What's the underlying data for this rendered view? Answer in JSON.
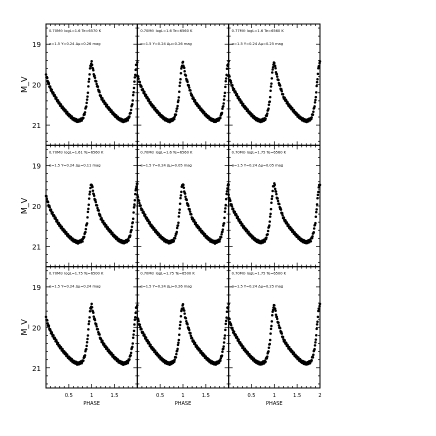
{
  "figure": {
    "ylabel": "M_V",
    "xlabel": "PHASE"
  },
  "chart_data": {
    "type": "scatter",
    "grid": false,
    "rows": 3,
    "cols": 3,
    "xlim": [
      0.0,
      2.0
    ],
    "ylim": [
      18.5,
      21.5
    ],
    "y_inverted": true,
    "xticks": [
      0.5,
      1.0,
      1.5,
      2.0
    ],
    "xtick_labels": [
      "0.5",
      "1",
      "1.5",
      "2"
    ],
    "yticks": [
      19,
      20,
      21
    ],
    "ytick_labels": [
      "19",
      "20",
      "21"
    ],
    "light_curve_template": {
      "phase": [
        0.0,
        0.05,
        0.1,
        0.2,
        0.3,
        0.4,
        0.5,
        0.6,
        0.7,
        0.8,
        0.85,
        0.9,
        0.94,
        0.97,
        1.0,
        1.05,
        1.1,
        1.2,
        1.3,
        1.4,
        1.5,
        1.6,
        1.7,
        1.8,
        1.85,
        1.9,
        1.94,
        1.97,
        2.0
      ],
      "mag": [
        19.75,
        19.95,
        20.1,
        20.3,
        20.48,
        20.62,
        20.75,
        20.85,
        20.9,
        20.85,
        20.7,
        20.4,
        19.9,
        19.55,
        19.45,
        19.75,
        19.95,
        20.3,
        20.48,
        20.62,
        20.75,
        20.85,
        20.9,
        20.85,
        20.7,
        20.4,
        19.9,
        19.55,
        19.45
      ]
    },
    "panels": [
      {
        "label_line1": "0.70M⊙ logL=1.6 Te=6570 K",
        "label_line2": "α=1.5 Y=0.24 Δμ=0.26 mag"
      },
      {
        "label_line1": "0.70M⊙ logL=1.6 Te=6560 K",
        "label_line2": "α=1.5 Y=0.24 Δμ=0.26 mag"
      },
      {
        "label_line1": "0.77M⊙ logL=1.6 Te=6560 K",
        "label_line2": "α=1.5 Y=0.24 Δμ=0.25 mag"
      },
      {
        "label_line1": "0.70M⊙ logL=1.61 Te=6560 K",
        "label_line2": "α=1.5 Y=0.24 Δμ=0.11 mag"
      },
      {
        "label_line1": "0.70M⊙ logL=1.6 Te=6560 K",
        "label_line2": "α=1.5 Y=0.24 Δμ=0.05 mag"
      },
      {
        "label_line1": "0.70M⊙ logL=1.75 Te=6560 K",
        "label_line2": "α=1.5 Y=0.24 Δμ=0.05 mag"
      },
      {
        "label_line1": "0.70M⊙ logL=1.75 Te=6500 K",
        "label_line2": "α=1.5 Y=0.24 Δμ=0.24 mag"
      },
      {
        "label_line1": "0.70M⊙ logL=1.75 Te=6500 K",
        "label_line2": "α=1.5 Y=0.24 Δμ=0.26 mag"
      },
      {
        "label_line1": "0.70M⊙ logL=1.75 Te=6500 K",
        "label_line2": "α=1.5 Y=0.24 Δμ=0.25 mag"
      }
    ]
  }
}
